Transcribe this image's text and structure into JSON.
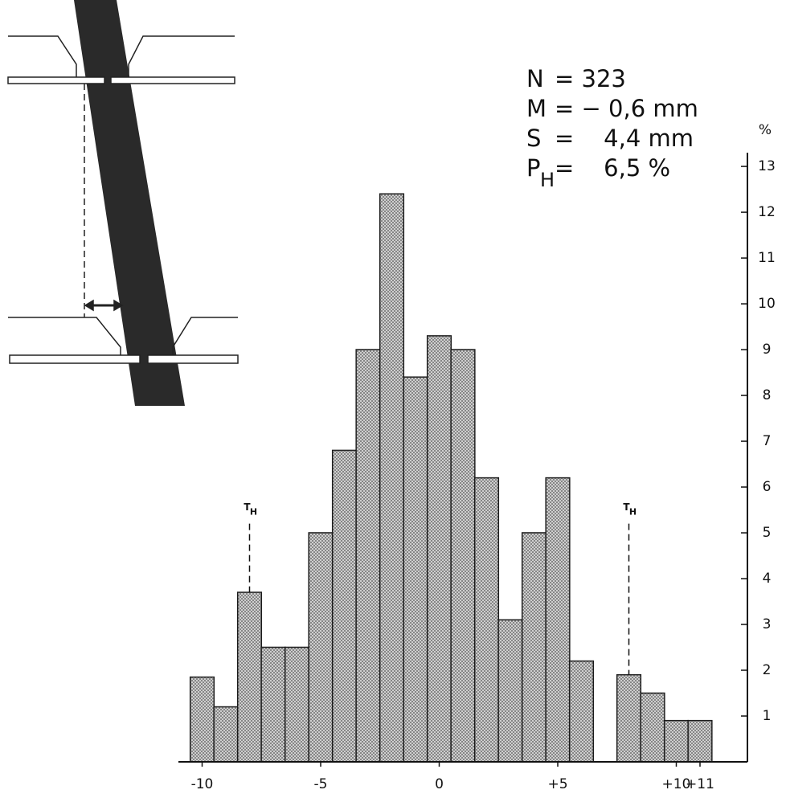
{
  "chart_data": {
    "type": "histogram",
    "bins": [
      -10.5,
      -9.5,
      -8.5,
      -7.5,
      -6.5,
      -5.5,
      -4.5,
      -3.5,
      -2.5,
      -1.5,
      -0.5,
      0.5,
      1.5,
      2.5,
      3.5,
      4.5,
      5.5,
      6.5,
      7.5,
      8.5,
      9.5,
      10.5,
      11.5
    ],
    "values": [
      1.85,
      1.2,
      3.7,
      2.5,
      2.5,
      5.0,
      6.8,
      9.0,
      12.4,
      8.4,
      9.3,
      9.0,
      6.2,
      3.1,
      5.0,
      6.2,
      2.2,
      0,
      1.9,
      1.5,
      0.9,
      0.9
    ],
    "color": "#b4b4b4",
    "xlim": [
      -11,
      13
    ],
    "xticks": [
      -10,
      -5,
      0,
      {
        "value": 5,
        "label": "+5"
      },
      {
        "value": 10,
        "label": "+10"
      },
      {
        "value": 11,
        "label": "+11"
      }
    ],
    "ylim": [
      0,
      13.3
    ],
    "yticks": [
      1,
      2,
      3,
      4,
      5,
      6,
      7,
      8,
      9,
      10,
      11,
      12,
      13
    ],
    "y_axis_label": "%",
    "y_axis_side": "right",
    "stats": [
      {
        "symbol": "N",
        "text": "= 323"
      },
      {
        "symbol": "M",
        "text": "= − 0,6 mm"
      },
      {
        "symbol": "S",
        "text": "=    4,4 mm"
      },
      {
        "symbol": "P",
        "subscript": "H",
        "text": "=    6,5 %"
      }
    ],
    "threshold_markers": [
      {
        "x": -8,
        "label": "T",
        "subscript": "H"
      },
      {
        "x": 8,
        "label": "T",
        "subscript": "H"
      }
    ]
  }
}
